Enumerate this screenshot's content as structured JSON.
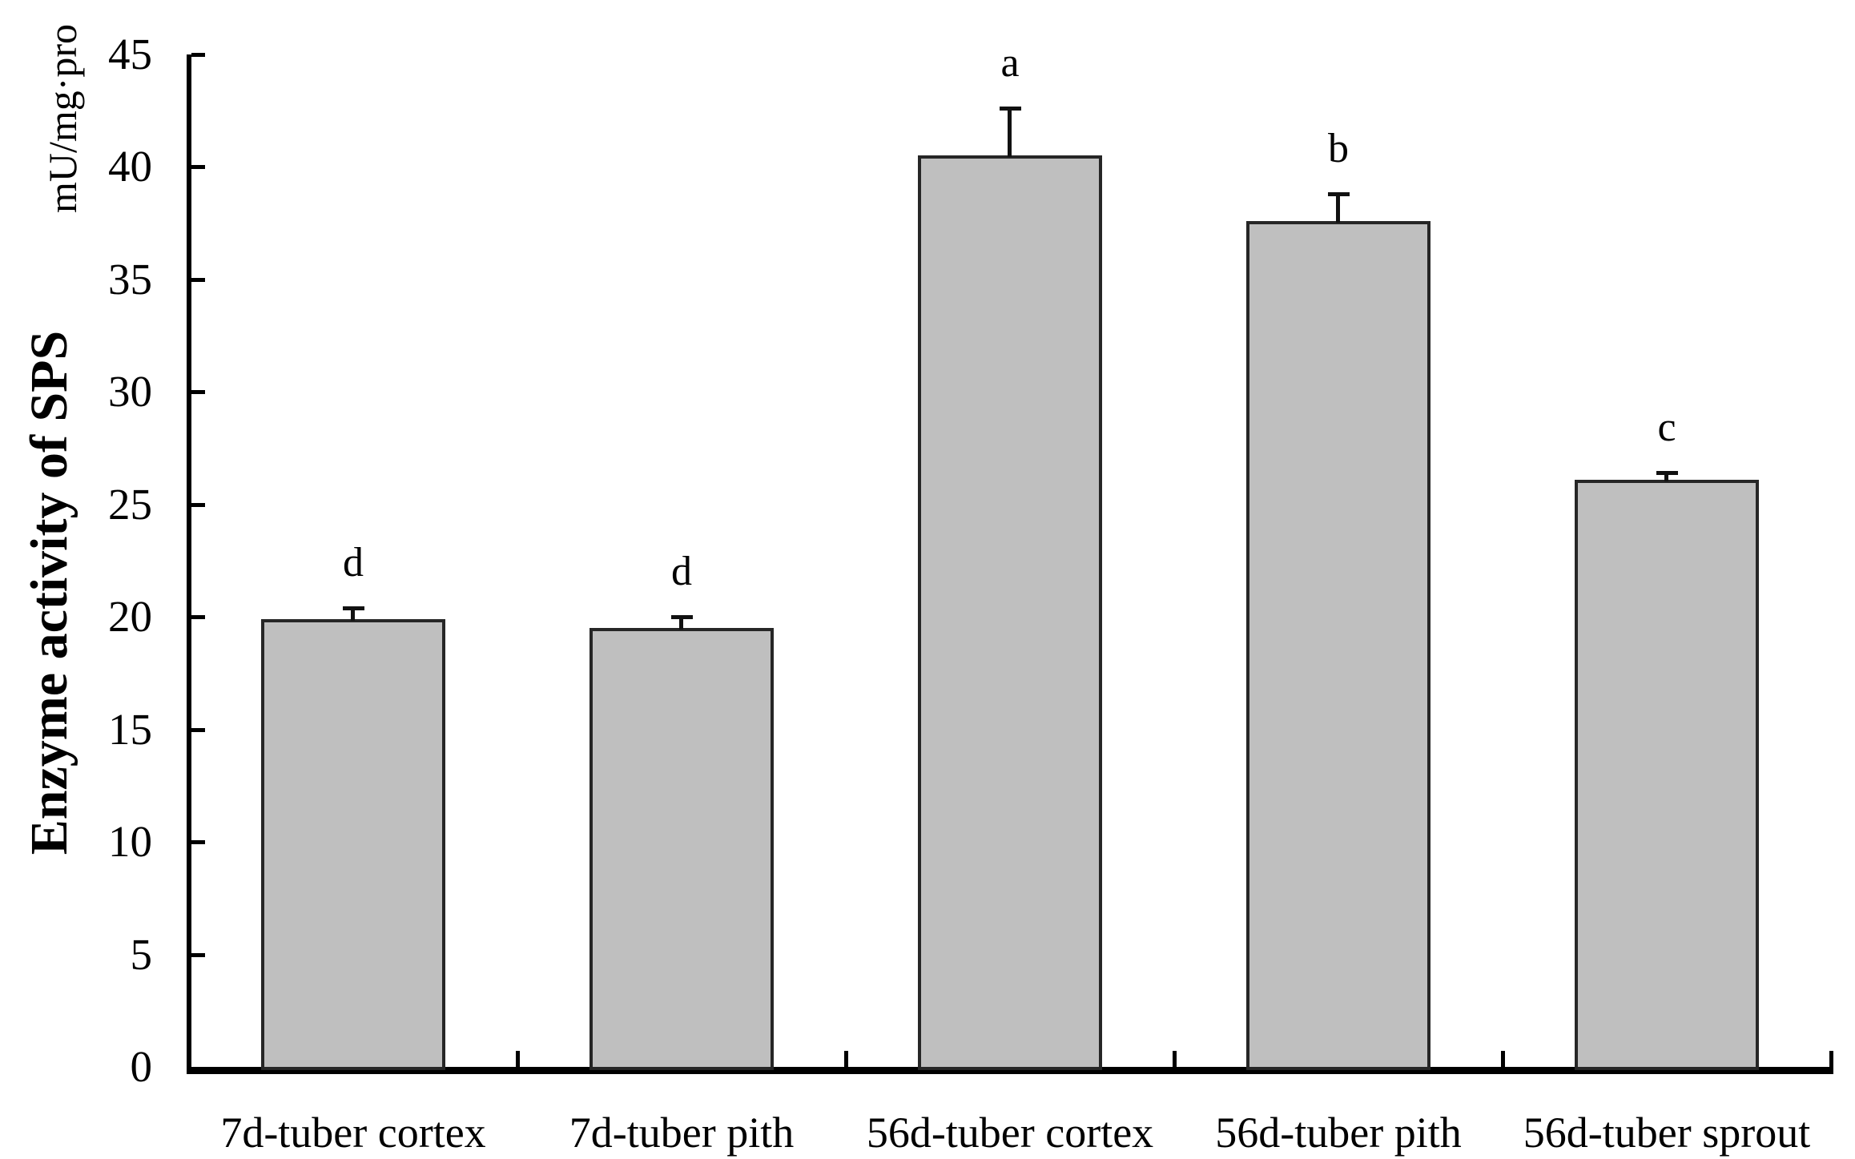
{
  "figure": {
    "y_axis_title": "Enzyme activity of SPS",
    "y_axis_unit": "mU/mg·pro"
  },
  "chart_data": {
    "type": "bar",
    "title": "",
    "xlabel": "",
    "ylabel": "Enzyme activity of SPS",
    "y_unit": "mU/mg·pro",
    "categories": [
      "7d-tuber cortex",
      "7d-tuber pith",
      "56d-tuber cortex",
      "56d-tuber pith",
      "56d-tuber sprout"
    ],
    "values": [
      19.9,
      19.5,
      40.5,
      37.6,
      26.1
    ],
    "errors": [
      0.5,
      0.5,
      2.1,
      1.2,
      0.3
    ],
    "sig_letters": [
      "d",
      "d",
      "a",
      "b",
      "c"
    ],
    "ylim": [
      0,
      45
    ],
    "ytick_step": 5,
    "yticks": [
      0,
      5,
      10,
      15,
      20,
      25,
      30,
      35,
      40,
      45
    ],
    "grid": false,
    "legend": "none",
    "bar_color": "#bfbfbf",
    "bar_border_color": "#262626",
    "error_bar_color": "#111111",
    "axis_color": "#000000",
    "text_color": "#000000"
  }
}
